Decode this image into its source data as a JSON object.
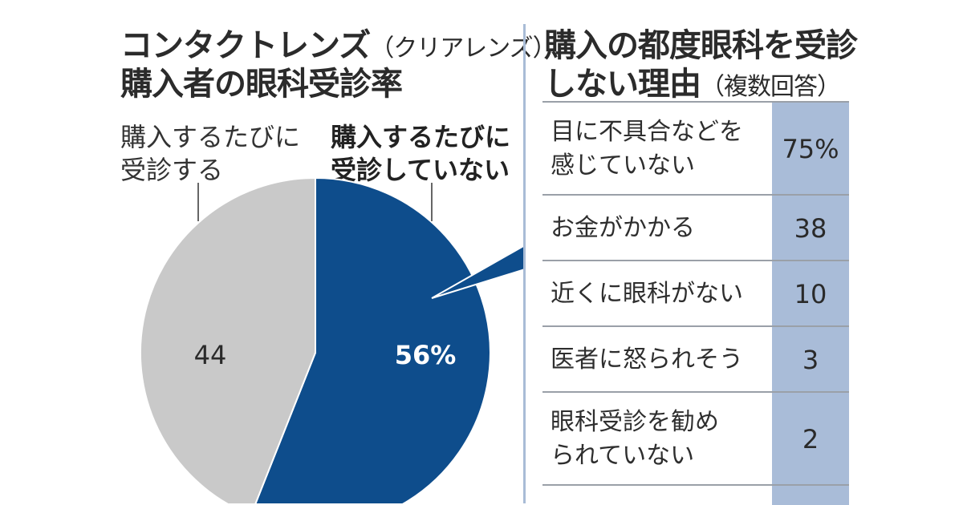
{
  "left_panel": {
    "title_line1": "コンタクトレンズ",
    "title_line1_paren": "（クリアレンズ）",
    "title_line2": "購入者の眼科受診率",
    "label_visit_line1": "購入するたびに",
    "label_visit_line2": "受診する",
    "label_novisit_line1": "購入するたびに",
    "label_novisit_line2": "受診していない"
  },
  "right_panel": {
    "title_line1": "購入の都度眼科を受診",
    "title_line2": "しない理由",
    "title_line2_paren": "（複数回答）"
  },
  "colors": {
    "pie_gray": "#c9c9c9",
    "pie_blue": "#0e4d8c",
    "table_value_bg": "#a9bcd8",
    "divider": "#a9bcd6"
  },
  "chart_data": [
    {
      "type": "pie",
      "title": "コンタクトレンズ（クリアレンズ）購入者の眼科受診率",
      "slices": [
        {
          "label": "購入するたびに受診していない",
          "value": 56,
          "display": "56%"
        },
        {
          "label": "購入するたびに受診する",
          "value": 44,
          "display": "44"
        }
      ]
    },
    {
      "type": "table",
      "title": "購入の都度眼科を受診しない理由（複数回答）",
      "rows": [
        {
          "label_lines": [
            "目に不具合などを",
            "感じていない"
          ],
          "value": 75,
          "display": "75%"
        },
        {
          "label_lines": [
            "お金がかかる"
          ],
          "value": 38,
          "display": "38"
        },
        {
          "label_lines": [
            "近くに眼科がない"
          ],
          "value": 10,
          "display": "10"
        },
        {
          "label_lines": [
            "医者に怒られそう"
          ],
          "value": 3,
          "display": "3"
        },
        {
          "label_lines": [
            "眼科受診を勧め",
            "られていない"
          ],
          "value": 2,
          "display": "2"
        }
      ]
    }
  ]
}
